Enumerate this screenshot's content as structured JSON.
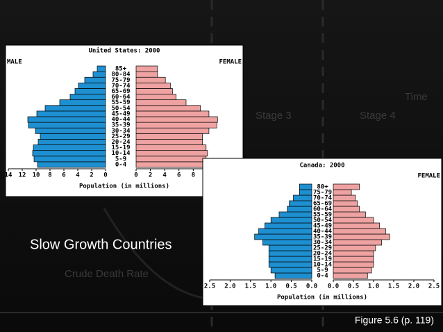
{
  "slide": {
    "time": "Time",
    "stage3": "Stage 3",
    "stage4": "Stage 4",
    "heading": "Slow Growth Countries",
    "death_rate": "Crude Death Rate",
    "figure": "Figure 5.6 (p. 119)"
  },
  "chart_data": [
    {
      "type": "pyramid",
      "title": "United States: 2000",
      "categories": [
        "0-4",
        "5-9",
        "10-14",
        "15-19",
        "20-24",
        "25-29",
        "30-34",
        "35-39",
        "40-44",
        "45-49",
        "50-54",
        "55-59",
        "60-64",
        "65-69",
        "70-74",
        "75-79",
        "80-84",
        "85+"
      ],
      "series": [
        {
          "name": "MALE",
          "color": "#1e8fd0",
          "values": [
            9.8,
            10.3,
            10.5,
            10.4,
            9.7,
            9.4,
            10.1,
            11.1,
            11.2,
            9.9,
            8.7,
            6.6,
            5.1,
            4.4,
            3.9,
            3.0,
            1.8,
            1.2
          ]
        },
        {
          "name": "FEMALE",
          "color": "#eea2a2",
          "values": [
            9.4,
            9.8,
            10.0,
            9.8,
            9.3,
            9.3,
            10.2,
            11.3,
            11.4,
            10.2,
            9.0,
            7.0,
            5.6,
            5.1,
            4.8,
            4.1,
            3.0,
            3.0
          ]
        }
      ],
      "xlim": [
        0,
        14
      ],
      "xticks": [
        0,
        2,
        4,
        6,
        8,
        10,
        12,
        14
      ],
      "xlabel": "Population (in millions)"
    },
    {
      "type": "pyramid",
      "title": "Canada: 2000",
      "categories": [
        "0-4",
        "5-9",
        "10-14",
        "15-19",
        "20-24",
        "25-29",
        "30-34",
        "35-39",
        "40-44",
        "45-49",
        "50-54",
        "55-59",
        "60-64",
        "65-69",
        "70-74",
        "75-79",
        "80+"
      ],
      "series": [
        {
          "color": "#1e8fd0",
          "values": [
            0.9,
            1.0,
            1.05,
            1.05,
            1.05,
            1.05,
            1.2,
            1.4,
            1.3,
            1.15,
            1.0,
            0.8,
            0.6,
            0.55,
            0.45,
            0.3,
            0.3
          ]
        },
        {
          "name": "FEMALE",
          "color": "#eea2a2",
          "values": [
            0.85,
            0.95,
            1.0,
            1.0,
            1.0,
            1.05,
            1.2,
            1.4,
            1.3,
            1.15,
            1.0,
            0.8,
            0.65,
            0.6,
            0.55,
            0.45,
            0.65
          ]
        }
      ],
      "xlim": [
        0,
        2.5
      ],
      "xticks": [
        {
          "value": 0,
          "label": "0.0"
        },
        0.5,
        {
          "value": 1,
          "label": "1.0"
        },
        1.5,
        {
          "value": 2,
          "label": "2.0"
        },
        2.5
      ],
      "xlabel": "Population (in millions)"
    }
  ]
}
